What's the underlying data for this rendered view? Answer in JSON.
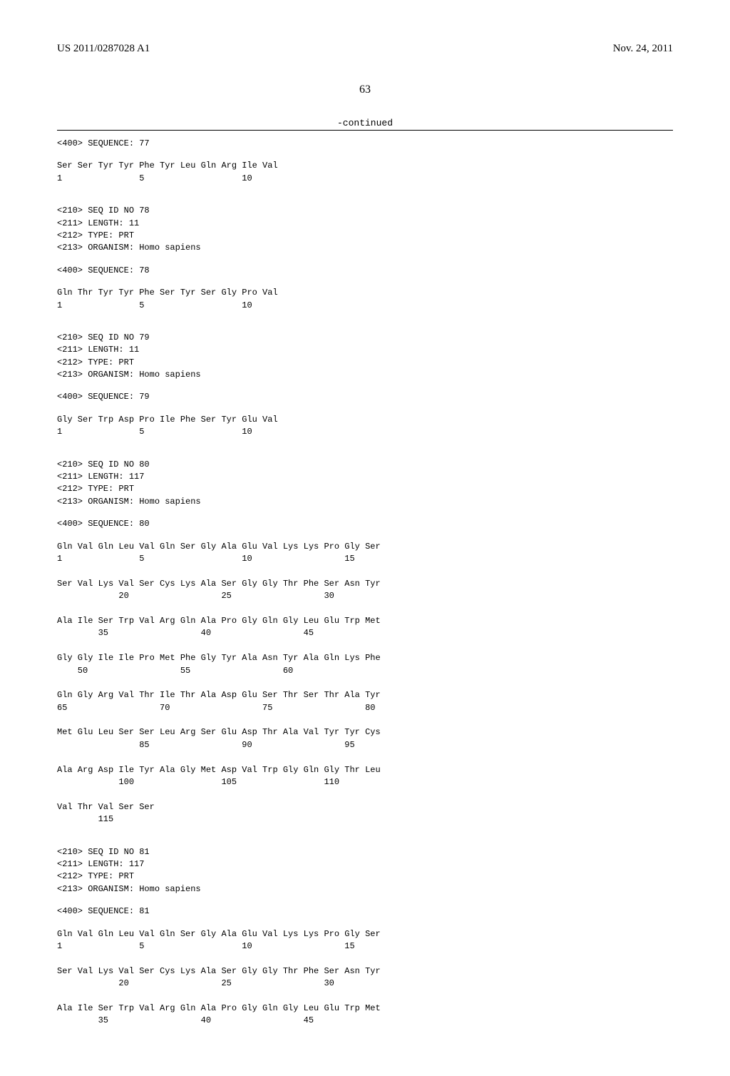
{
  "header": {
    "pub_number": "US 2011/0287028 A1",
    "pub_date": "Nov. 24, 2011",
    "page_number": "63",
    "continued_label": "-continued"
  },
  "sequences": [
    {
      "seq_label": "<400> SEQUENCE: 77",
      "lines": [
        "Ser Ser Tyr Tyr Phe Tyr Leu Gln Arg Ile Val",
        "1               5                   10"
      ]
    },
    {
      "meta": [
        "<210> SEQ ID NO 78",
        "<211> LENGTH: 11",
        "<212> TYPE: PRT",
        "<213> ORGANISM: Homo sapiens"
      ],
      "seq_label": "<400> SEQUENCE: 78",
      "lines": [
        "Gln Thr Tyr Tyr Phe Ser Tyr Ser Gly Pro Val",
        "1               5                   10"
      ]
    },
    {
      "meta": [
        "<210> SEQ ID NO 79",
        "<211> LENGTH: 11",
        "<212> TYPE: PRT",
        "<213> ORGANISM: Homo sapiens"
      ],
      "seq_label": "<400> SEQUENCE: 79",
      "lines": [
        "Gly Ser Trp Asp Pro Ile Phe Ser Tyr Glu Val",
        "1               5                   10"
      ]
    },
    {
      "meta": [
        "<210> SEQ ID NO 80",
        "<211> LENGTH: 117",
        "<212> TYPE: PRT",
        "<213> ORGANISM: Homo sapiens"
      ],
      "seq_label": "<400> SEQUENCE: 80",
      "lines": [
        "Gln Val Gln Leu Val Gln Ser Gly Ala Glu Val Lys Lys Pro Gly Ser",
        "1               5                   10                  15",
        "",
        "Ser Val Lys Val Ser Cys Lys Ala Ser Gly Gly Thr Phe Ser Asn Tyr",
        "            20                  25                  30",
        "",
        "Ala Ile Ser Trp Val Arg Gln Ala Pro Gly Gln Gly Leu Glu Trp Met",
        "        35                  40                  45",
        "",
        "Gly Gly Ile Ile Pro Met Phe Gly Tyr Ala Asn Tyr Ala Gln Lys Phe",
        "    50                  55                  60",
        "",
        "Gln Gly Arg Val Thr Ile Thr Ala Asp Glu Ser Thr Ser Thr Ala Tyr",
        "65                  70                  75                  80",
        "",
        "Met Glu Leu Ser Ser Leu Arg Ser Glu Asp Thr Ala Val Tyr Tyr Cys",
        "                85                  90                  95",
        "",
        "Ala Arg Asp Ile Tyr Ala Gly Met Asp Val Trp Gly Gln Gly Thr Leu",
        "            100                 105                 110",
        "",
        "Val Thr Val Ser Ser",
        "        115"
      ]
    },
    {
      "meta": [
        "<210> SEQ ID NO 81",
        "<211> LENGTH: 117",
        "<212> TYPE: PRT",
        "<213> ORGANISM: Homo sapiens"
      ],
      "seq_label": "<400> SEQUENCE: 81",
      "lines": [
        "Gln Val Gln Leu Val Gln Ser Gly Ala Glu Val Lys Lys Pro Gly Ser",
        "1               5                   10                  15",
        "",
        "Ser Val Lys Val Ser Cys Lys Ala Ser Gly Gly Thr Phe Ser Asn Tyr",
        "            20                  25                  30",
        "",
        "Ala Ile Ser Trp Val Arg Gln Ala Pro Gly Gln Gly Leu Glu Trp Met",
        "        35                  40                  45"
      ]
    }
  ]
}
